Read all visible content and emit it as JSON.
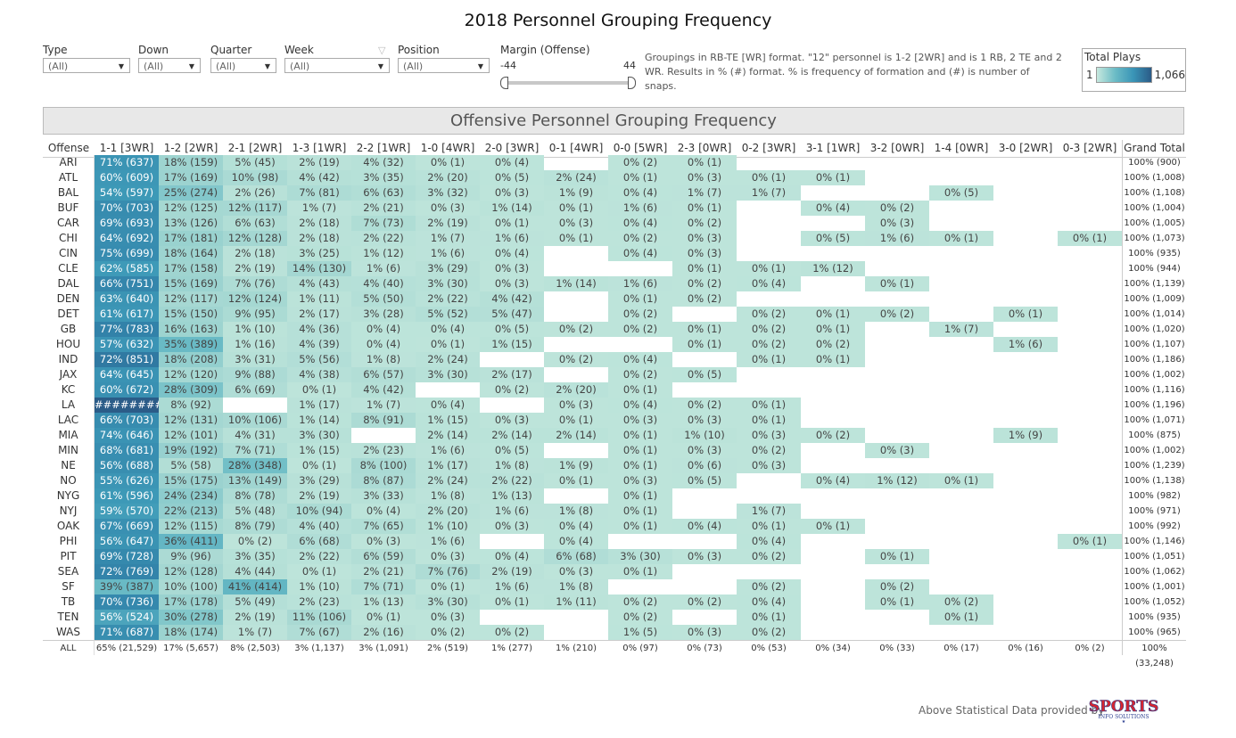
{
  "title": "2018 Personnel Grouping Frequency",
  "filters": [
    {
      "label": "Type",
      "value": "(All)"
    },
    {
      "label": "Down",
      "value": "(All)"
    },
    {
      "label": "Quarter",
      "value": "(All)"
    },
    {
      "label": "Week",
      "value": "(All)"
    },
    {
      "label": "Position",
      "value": "(All)"
    }
  ],
  "margin": {
    "label": "Margin (Offense)",
    "min": "-44",
    "max": "44"
  },
  "note": "Groupings in RB-TE [WR] format. \"12\" personnel is 1-2 [2WR] and is 1 RB, 2 TE and 2 WR.  Results in % (#) format. % is frequency of formation and (#) is number of snaps.",
  "legend": {
    "title": "Total Plays",
    "min": "1",
    "max": "1,066",
    "colors": [
      "#c6e8de",
      "#6cbcc6",
      "#3a95b7",
      "#2b5b87"
    ]
  },
  "footer": {
    "text": "Above Statistical Data provided by",
    "logo": "SPORTS INFO SOLUTIONS"
  },
  "chart_data": {
    "type": "table",
    "title": "Offensive Personnel Grouping Frequency",
    "row_header": "Offense",
    "columns": [
      "1-1 [3WR]",
      "1-2 [2WR]",
      "2-1 [2WR]",
      "1-3 [1WR]",
      "2-2 [1WR]",
      "1-0 [4WR]",
      "2-0 [3WR]",
      "0-1 [4WR]",
      "0-0 [5WR]",
      "2-3 [0WR]",
      "0-2 [3WR]",
      "3-1 [1WR]",
      "3-2 [0WR]",
      "1-4 [0WR]",
      "3-0 [2WR]",
      "0-3 [2WR]"
    ],
    "total_header": "Grand Total",
    "rows": [
      {
        "team": "ARI",
        "cells": [
          "71% (637)",
          "18% (159)",
          "5% (45)",
          "2% (19)",
          "4% (32)",
          "0% (1)",
          "0% (4)",
          "",
          "0% (2)",
          "0% (1)",
          "",
          "",
          "",
          "",
          "",
          ""
        ],
        "total": "100% (900)"
      },
      {
        "team": "ATL",
        "cells": [
          "60% (609)",
          "17% (169)",
          "10% (98)",
          "4% (42)",
          "3% (35)",
          "2% (20)",
          "0% (5)",
          "2% (24)",
          "0% (1)",
          "0% (3)",
          "0% (1)",
          "0% (1)",
          "",
          "",
          "",
          ""
        ],
        "total": "100% (1,008)"
      },
      {
        "team": "BAL",
        "cells": [
          "54% (597)",
          "25% (274)",
          "2% (26)",
          "7% (81)",
          "6% (63)",
          "3% (32)",
          "0% (3)",
          "1% (9)",
          "0% (4)",
          "1% (7)",
          "1% (7)",
          "",
          "",
          "0% (5)",
          "",
          ""
        ],
        "total": "100% (1,108)"
      },
      {
        "team": "BUF",
        "cells": [
          "70% (703)",
          "12% (125)",
          "12% (117)",
          "1% (7)",
          "2% (21)",
          "0% (3)",
          "1% (14)",
          "0% (1)",
          "1% (6)",
          "0% (1)",
          "",
          "0% (4)",
          "0% (2)",
          "",
          "",
          ""
        ],
        "total": "100% (1,004)"
      },
      {
        "team": "CAR",
        "cells": [
          "69% (693)",
          "13% (126)",
          "6% (63)",
          "2% (18)",
          "7% (73)",
          "2% (19)",
          "0% (1)",
          "0% (3)",
          "0% (4)",
          "0% (2)",
          "",
          "",
          "0% (3)",
          "",
          "",
          ""
        ],
        "total": "100% (1,005)"
      },
      {
        "team": "CHI",
        "cells": [
          "64% (692)",
          "17% (181)",
          "12% (128)",
          "2% (18)",
          "2% (22)",
          "1% (7)",
          "1% (6)",
          "0% (1)",
          "0% (2)",
          "0% (3)",
          "",
          "0% (5)",
          "1% (6)",
          "0% (1)",
          "",
          "0% (1)"
        ],
        "total": "100% (1,073)"
      },
      {
        "team": "CIN",
        "cells": [
          "75% (699)",
          "18% (164)",
          "2% (18)",
          "3% (25)",
          "1% (12)",
          "1% (6)",
          "0% (4)",
          "",
          "0% (4)",
          "0% (3)",
          "",
          "",
          "",
          "",
          "",
          ""
        ],
        "total": "100% (935)"
      },
      {
        "team": "CLE",
        "cells": [
          "62% (585)",
          "17% (158)",
          "2% (19)",
          "14% (130)",
          "1% (6)",
          "3% (29)",
          "0% (3)",
          "",
          "",
          "0% (1)",
          "0% (1)",
          "1% (12)",
          "",
          "",
          "",
          ""
        ],
        "total": "100% (944)"
      },
      {
        "team": "DAL",
        "cells": [
          "66% (751)",
          "15% (169)",
          "7% (76)",
          "4% (43)",
          "4% (40)",
          "3% (30)",
          "0% (3)",
          "1% (14)",
          "1% (6)",
          "0% (2)",
          "0% (4)",
          "",
          "0% (1)",
          "",
          "",
          ""
        ],
        "total": "100% (1,139)"
      },
      {
        "team": "DEN",
        "cells": [
          "63% (640)",
          "12% (117)",
          "12% (124)",
          "1% (11)",
          "5% (50)",
          "2% (22)",
          "4% (42)",
          "",
          "0% (1)",
          "0% (2)",
          "",
          "",
          "",
          "",
          "",
          ""
        ],
        "total": "100% (1,009)"
      },
      {
        "team": "DET",
        "cells": [
          "61% (617)",
          "15% (150)",
          "9% (95)",
          "2% (17)",
          "3% (28)",
          "5% (52)",
          "5% (47)",
          "",
          "0% (2)",
          "",
          "0% (2)",
          "0% (1)",
          "0% (2)",
          "",
          "0% (1)",
          ""
        ],
        "total": "100% (1,014)"
      },
      {
        "team": "GB",
        "cells": [
          "77% (783)",
          "16% (163)",
          "1% (10)",
          "4% (36)",
          "0% (4)",
          "0% (4)",
          "0% (5)",
          "0% (2)",
          "0% (2)",
          "0% (1)",
          "0% (2)",
          "0% (1)",
          "",
          "1% (7)",
          "",
          ""
        ],
        "total": "100% (1,020)"
      },
      {
        "team": "HOU",
        "cells": [
          "57% (632)",
          "35% (389)",
          "1% (16)",
          "4% (39)",
          "0% (4)",
          "0% (1)",
          "1% (15)",
          "",
          "",
          "0% (1)",
          "0% (2)",
          "0% (2)",
          "",
          "",
          "1% (6)",
          ""
        ],
        "total": "100% (1,107)"
      },
      {
        "team": "IND",
        "cells": [
          "72% (851)",
          "18% (208)",
          "3% (31)",
          "5% (56)",
          "1% (8)",
          "2% (24)",
          "",
          "0% (2)",
          "0% (4)",
          "",
          "0% (1)",
          "0% (1)",
          "",
          "",
          "",
          ""
        ],
        "total": "100% (1,186)"
      },
      {
        "team": "JAX",
        "cells": [
          "64% (645)",
          "12% (120)",
          "9% (88)",
          "4% (38)",
          "6% (57)",
          "3% (30)",
          "2% (17)",
          "",
          "0% (2)",
          "0% (5)",
          "",
          "",
          "",
          "",
          "",
          ""
        ],
        "total": "100% (1,002)"
      },
      {
        "team": "KC",
        "cells": [
          "60% (672)",
          "28% (309)",
          "6% (69)",
          "0% (1)",
          "4% (42)",
          "",
          "0% (2)",
          "2% (20)",
          "0% (1)",
          "",
          "",
          "",
          "",
          "",
          "",
          ""
        ],
        "total": "100% (1,116)"
      },
      {
        "team": "LA",
        "cells": [
          "########",
          "8% (92)",
          "",
          "1% (17)",
          "1% (7)",
          "0% (4)",
          "",
          "0% (3)",
          "0% (4)",
          "0% (2)",
          "0% (1)",
          "",
          "",
          "",
          "",
          ""
        ],
        "total": "100% (1,196)"
      },
      {
        "team": "LAC",
        "cells": [
          "66% (703)",
          "12% (131)",
          "10% (106)",
          "1% (14)",
          "8% (91)",
          "1% (15)",
          "0% (3)",
          "0% (1)",
          "0% (3)",
          "0% (3)",
          "0% (1)",
          "",
          "",
          "",
          "",
          ""
        ],
        "total": "100% (1,071)"
      },
      {
        "team": "MIA",
        "cells": [
          "74% (646)",
          "12% (101)",
          "4% (31)",
          "3% (30)",
          "",
          "2% (14)",
          "2% (14)",
          "2% (14)",
          "0% (1)",
          "1% (10)",
          "0% (3)",
          "0% (2)",
          "",
          "",
          "1% (9)",
          ""
        ],
        "total": "100% (875)"
      },
      {
        "team": "MIN",
        "cells": [
          "68% (681)",
          "19% (192)",
          "7% (71)",
          "1% (15)",
          "2% (23)",
          "1% (6)",
          "0% (5)",
          "",
          "0% (1)",
          "0% (3)",
          "0% (2)",
          "",
          "0% (3)",
          "",
          "",
          ""
        ],
        "total": "100% (1,002)"
      },
      {
        "team": "NE",
        "cells": [
          "56% (688)",
          "5% (58)",
          "28% (348)",
          "0% (1)",
          "8% (100)",
          "1% (17)",
          "1% (8)",
          "1% (9)",
          "0% (1)",
          "0% (6)",
          "0% (3)",
          "",
          "",
          "",
          "",
          ""
        ],
        "total": "100% (1,239)"
      },
      {
        "team": "NO",
        "cells": [
          "55% (626)",
          "15% (175)",
          "13% (149)",
          "3% (29)",
          "8% (87)",
          "2% (24)",
          "2% (22)",
          "0% (1)",
          "0% (3)",
          "0% (5)",
          "",
          "0% (4)",
          "1% (12)",
          "0% (1)",
          "",
          ""
        ],
        "total": "100% (1,138)"
      },
      {
        "team": "NYG",
        "cells": [
          "61% (596)",
          "24% (234)",
          "8% (78)",
          "2% (19)",
          "3% (33)",
          "1% (8)",
          "1% (13)",
          "",
          "0% (1)",
          "",
          "",
          "",
          "",
          "",
          "",
          ""
        ],
        "total": "100% (982)"
      },
      {
        "team": "NYJ",
        "cells": [
          "59% (570)",
          "22% (213)",
          "5% (48)",
          "10% (94)",
          "0% (4)",
          "2% (20)",
          "1% (6)",
          "1% (8)",
          "0% (1)",
          "",
          "1% (7)",
          "",
          "",
          "",
          "",
          ""
        ],
        "total": "100% (971)"
      },
      {
        "team": "OAK",
        "cells": [
          "67% (669)",
          "12% (115)",
          "8% (79)",
          "4% (40)",
          "7% (65)",
          "1% (10)",
          "0% (3)",
          "0% (4)",
          "0% (1)",
          "0% (4)",
          "0% (1)",
          "0% (1)",
          "",
          "",
          "",
          ""
        ],
        "total": "100% (992)"
      },
      {
        "team": "PHI",
        "cells": [
          "56% (647)",
          "36% (411)",
          "0% (2)",
          "6% (68)",
          "0% (3)",
          "1% (6)",
          "",
          "0% (4)",
          "",
          "",
          "0% (4)",
          "",
          "",
          "",
          "",
          "0% (1)"
        ],
        "total": "100% (1,146)"
      },
      {
        "team": "PIT",
        "cells": [
          "69% (728)",
          "9% (96)",
          "3% (35)",
          "2% (22)",
          "6% (59)",
          "0% (3)",
          "0% (4)",
          "6% (68)",
          "3% (30)",
          "0% (3)",
          "0% (2)",
          "",
          "0% (1)",
          "",
          "",
          ""
        ],
        "total": "100% (1,051)"
      },
      {
        "team": "SEA",
        "cells": [
          "72% (769)",
          "12% (128)",
          "4% (44)",
          "0% (1)",
          "2% (21)",
          "7% (76)",
          "2% (19)",
          "0% (3)",
          "0% (1)",
          "",
          "",
          "",
          "",
          "",
          "",
          ""
        ],
        "total": "100% (1,062)"
      },
      {
        "team": "SF",
        "cells": [
          "39% (387)",
          "10% (100)",
          "41% (414)",
          "1% (10)",
          "7% (71)",
          "0% (1)",
          "1% (6)",
          "1% (8)",
          "",
          "",
          "0% (2)",
          "",
          "0% (2)",
          "",
          "",
          ""
        ],
        "total": "100% (1,001)"
      },
      {
        "team": "TB",
        "cells": [
          "70% (736)",
          "17% (178)",
          "5% (49)",
          "2% (23)",
          "1% (13)",
          "3% (30)",
          "0% (1)",
          "1% (11)",
          "0% (2)",
          "0% (2)",
          "0% (4)",
          "",
          "0% (1)",
          "0% (2)",
          "",
          ""
        ],
        "total": "100% (1,052)"
      },
      {
        "team": "TEN",
        "cells": [
          "56% (524)",
          "30% (278)",
          "2% (19)",
          "11% (106)",
          "0% (1)",
          "0% (3)",
          "",
          "",
          "0% (2)",
          "",
          "0% (1)",
          "",
          "",
          "0% (1)",
          "",
          ""
        ],
        "total": "100% (935)"
      },
      {
        "team": "WAS",
        "cells": [
          "71% (687)",
          "18% (174)",
          "1% (7)",
          "7% (67)",
          "2% (16)",
          "0% (2)",
          "0% (2)",
          "",
          "1% (5)",
          "0% (3)",
          "0% (2)",
          "",
          "",
          "",
          "",
          ""
        ],
        "total": "100% (965)"
      }
    ],
    "totals_row": {
      "team": "ALL",
      "cells": [
        "65% (21,529)",
        "17% (5,657)",
        "8% (2,503)",
        "3% (1,137)",
        "3% (1,091)",
        "2% (519)",
        "1% (277)",
        "1% (210)",
        "0% (97)",
        "0% (73)",
        "0% (53)",
        "0% (34)",
        "0% (33)",
        "0% (17)",
        "0% (16)",
        "0% (2)"
      ],
      "total": "100% (33,248)"
    },
    "color_scale": {
      "min": 1,
      "max": 1066
    }
  }
}
